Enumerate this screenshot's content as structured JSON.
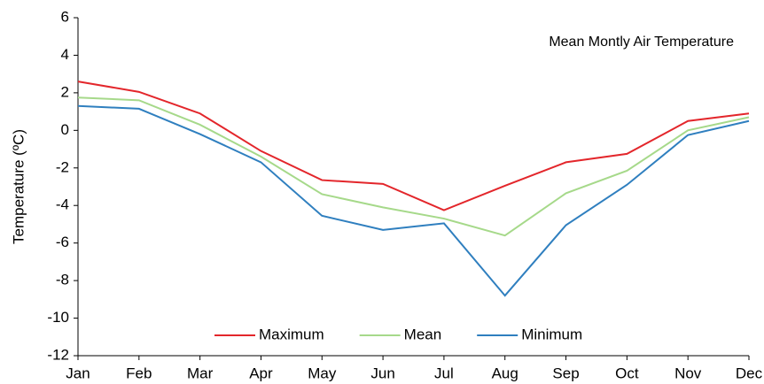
{
  "chart_data": {
    "type": "line",
    "title": "Mean Montly Air Temperature",
    "y_label": "Temperature (ºC)",
    "categories": [
      "Jan",
      "Feb",
      "Mar",
      "Apr",
      "May",
      "Jun",
      "Jul",
      "Aug",
      "Sep",
      "Oct",
      "Nov",
      "Dec"
    ],
    "series": [
      {
        "name": "Maximum",
        "color": "#e3262b",
        "values": [
          2.6,
          2.05,
          0.9,
          -1.1,
          -2.65,
          -2.85,
          -4.25,
          -2.95,
          -1.7,
          -1.25,
          0.5,
          0.9
        ]
      },
      {
        "name": "Mean",
        "color": "#a6d98a",
        "values": [
          1.75,
          1.6,
          0.3,
          -1.4,
          -3.4,
          -4.1,
          -4.7,
          -5.6,
          -3.35,
          -2.15,
          0.0,
          0.7
        ]
      },
      {
        "name": "Minimum",
        "color": "#2f7fbf",
        "values": [
          1.3,
          1.15,
          -0.2,
          -1.7,
          -4.55,
          -5.3,
          -4.95,
          -8.8,
          -5.05,
          -2.9,
          -0.25,
          0.5
        ]
      }
    ],
    "ylim": [
      -12,
      6
    ],
    "yticks": [
      -12,
      -10,
      -8,
      -6,
      -4,
      -2,
      0,
      2,
      4,
      6
    ],
    "grid": false,
    "legend": "bottom"
  }
}
